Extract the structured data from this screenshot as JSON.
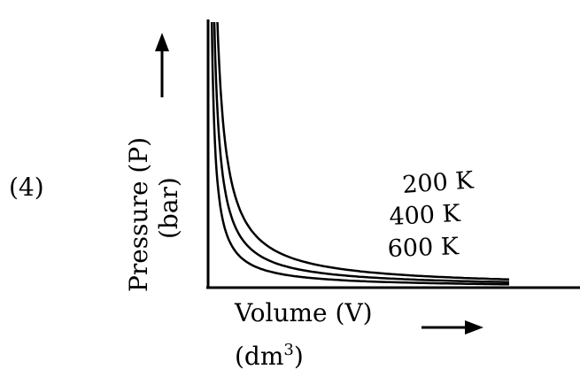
{
  "option_label": "(4)",
  "chart_data": {
    "type": "line",
    "title": "",
    "xlabel": "Volume (V)",
    "xlabel_unit_base": "(dm",
    "xlabel_unit_exp": "3",
    "xlabel_unit_close": ")",
    "ylabel": "Pressure (P)",
    "ylabel_unit": "(bar)",
    "x_ticks": [],
    "y_ticks": [],
    "grid": false,
    "note": "",
    "series": [
      {
        "name": "200 K",
        "constant": 3.0
      },
      {
        "name": "400 K",
        "constant": 2.0
      },
      {
        "name": "600 K",
        "constant": 1.2
      }
    ],
    "xlim": [
      0,
      10
    ],
    "ylim": [
      0,
      10
    ]
  }
}
